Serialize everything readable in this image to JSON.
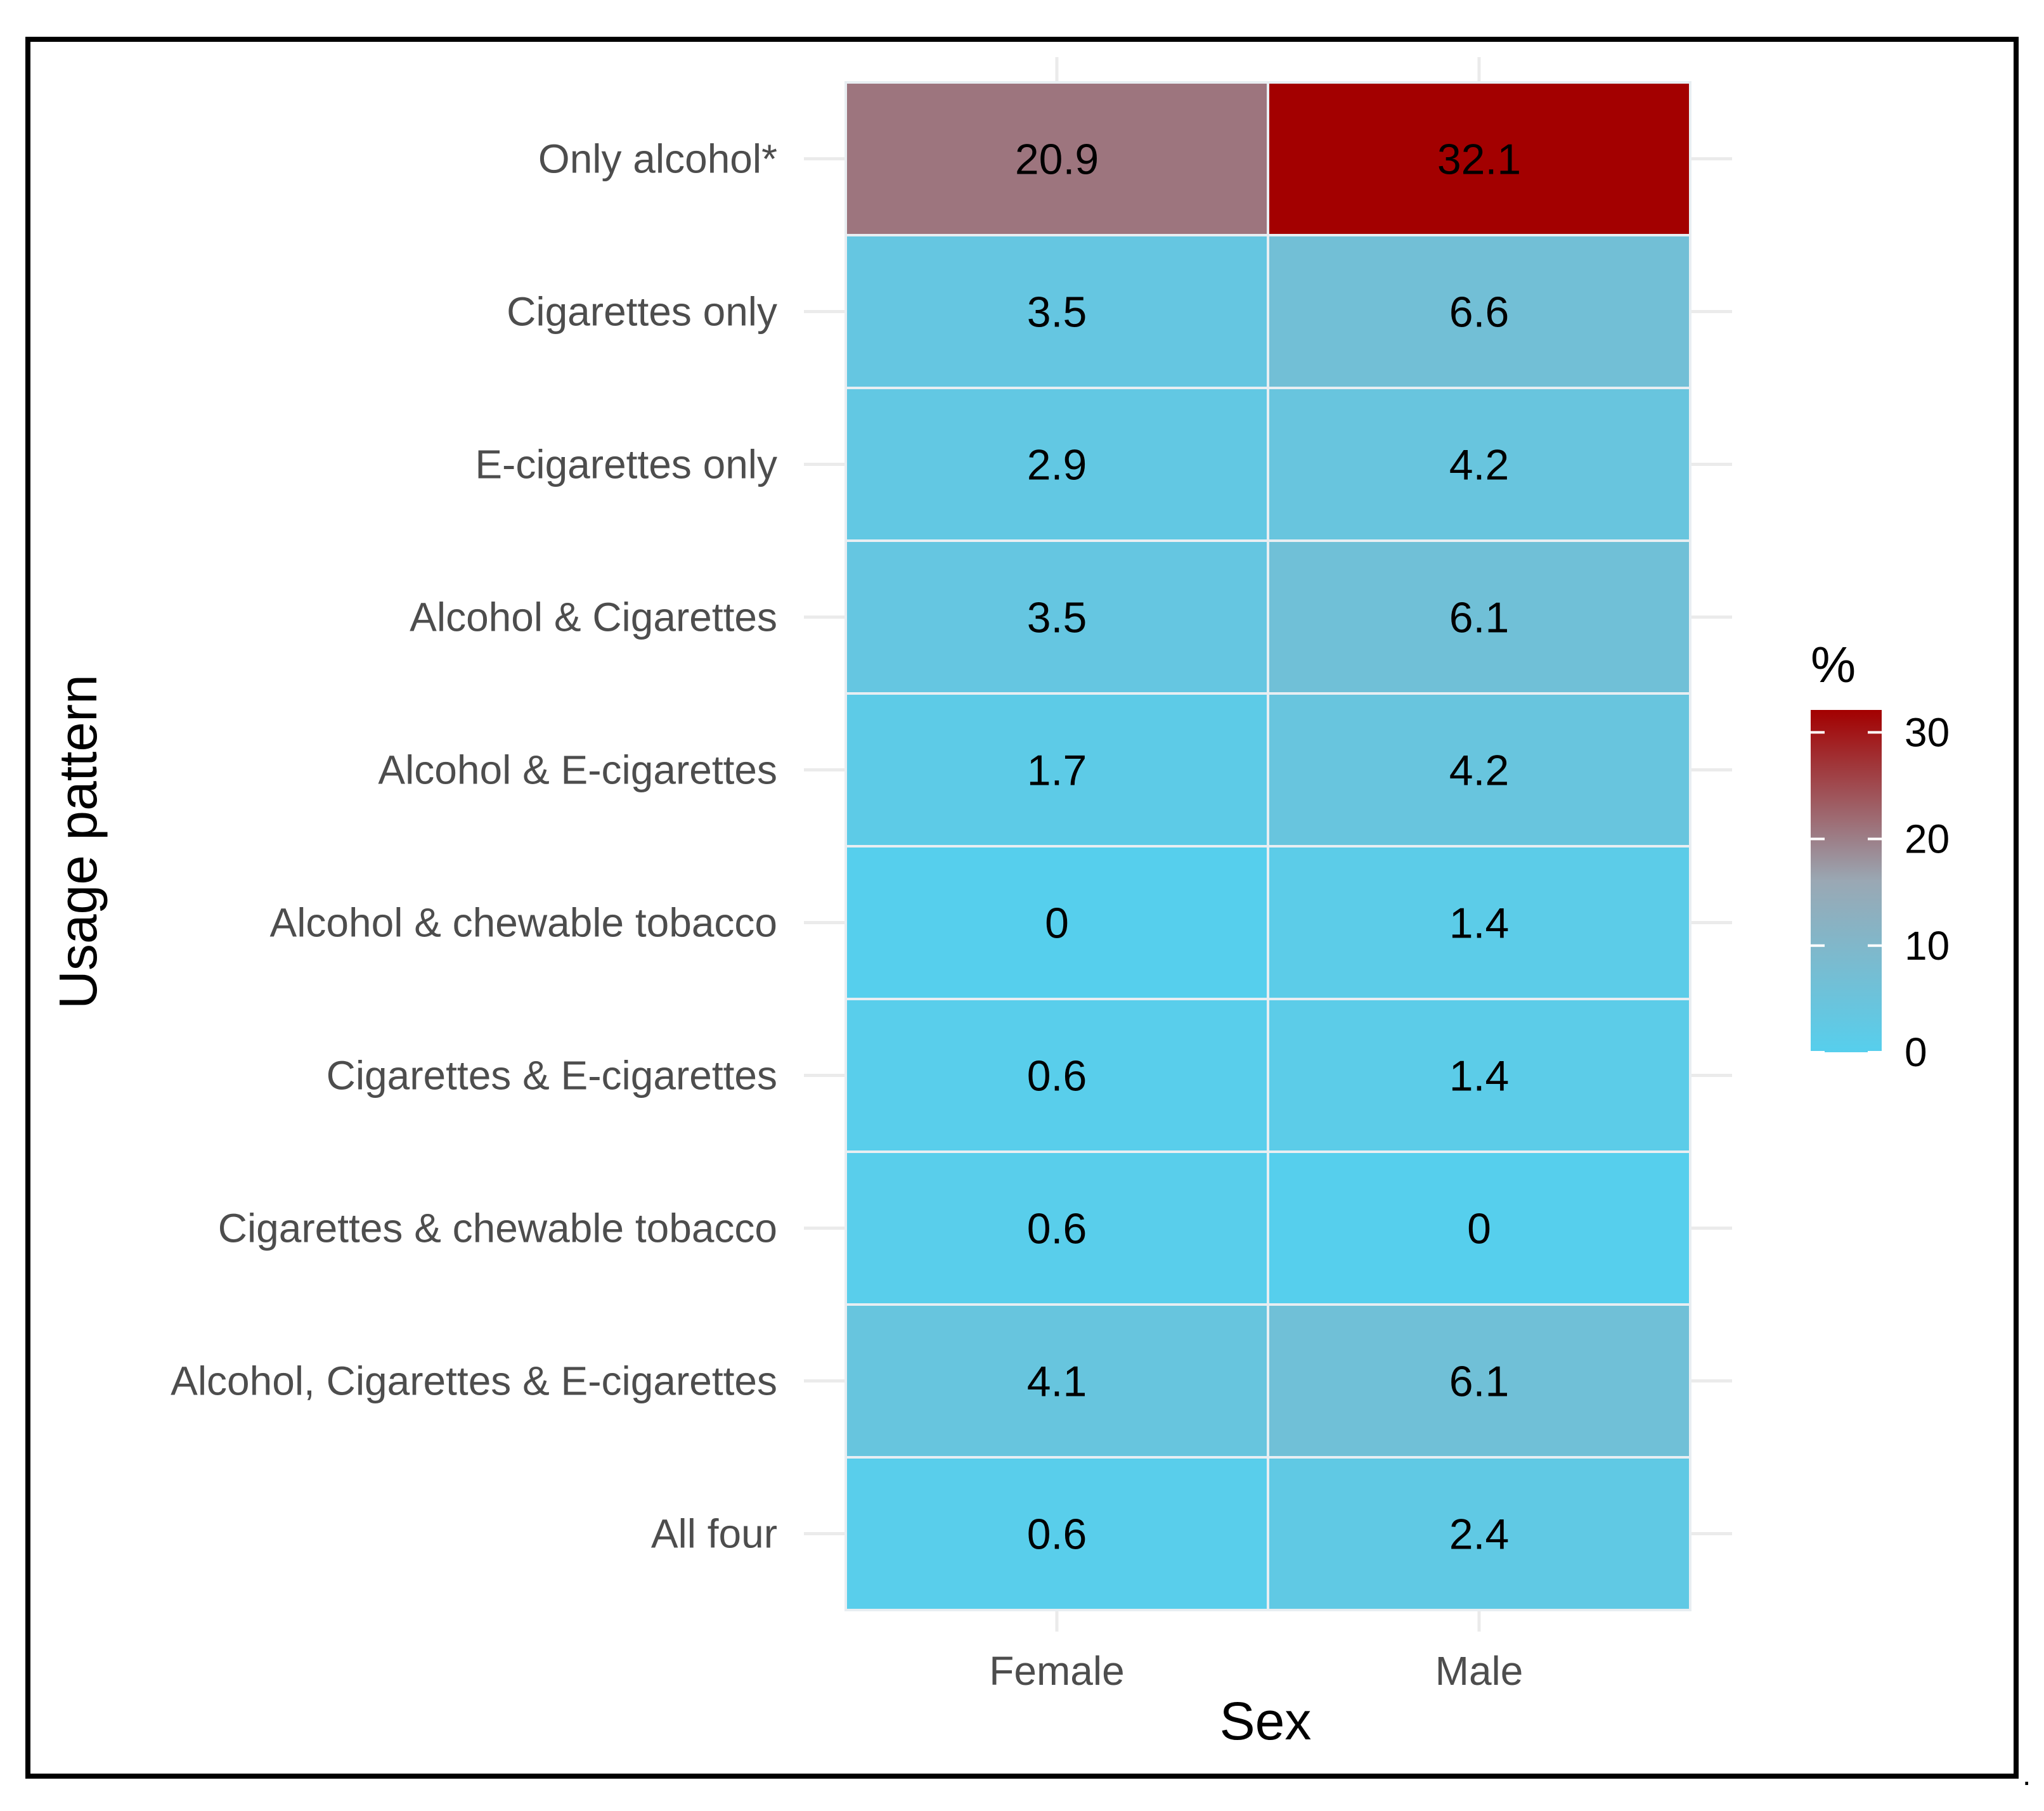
{
  "chart_data": {
    "type": "heatmap",
    "title": "",
    "xlabel": "Sex",
    "ylabel": "Usage pattern",
    "x_categories": [
      "Female",
      "Male"
    ],
    "y_categories": [
      "Only alcohol*",
      "Cigarettes only",
      "E-cigarettes only",
      "Alcohol & Cigarettes",
      "Alcohol & E-cigarettes",
      "Alcohol & chewable tobacco",
      "Cigarettes & E-cigarettes",
      "Cigarettes & chewable tobacco",
      "Alcohol, Cigarettes & E-cigarettes",
      "All four"
    ],
    "values": [
      [
        20.9,
        32.1
      ],
      [
        3.5,
        6.6
      ],
      [
        2.9,
        4.2
      ],
      [
        3.5,
        6.1
      ],
      [
        1.7,
        4.2
      ],
      [
        0,
        1.4
      ],
      [
        0.6,
        1.4
      ],
      [
        0.6,
        0
      ],
      [
        4.1,
        6.1
      ],
      [
        0.6,
        2.4
      ]
    ],
    "value_labels": [
      [
        "20.9",
        "32.1"
      ],
      [
        "3.5",
        "6.6"
      ],
      [
        "2.9",
        "4.2"
      ],
      [
        "3.5",
        "6.1"
      ],
      [
        "1.7",
        "4.2"
      ],
      [
        "0",
        "1.4"
      ],
      [
        "0.6",
        "1.4"
      ],
      [
        "0.6",
        "0"
      ],
      [
        "4.1",
        "6.1"
      ],
      [
        "0.6",
        "2.4"
      ]
    ],
    "colorbar": {
      "title": "%",
      "min": 0,
      "max": 32.1,
      "ticks": [
        0,
        10,
        20,
        30
      ],
      "tick_labels": [
        "0",
        "10",
        "20",
        "30"
      ],
      "colors": {
        "low": "#56cfed",
        "mid": "#9aa8b4",
        "high": "#a30000"
      }
    },
    "legend_position": "right",
    "grid": true
  },
  "trailing_mark": "."
}
